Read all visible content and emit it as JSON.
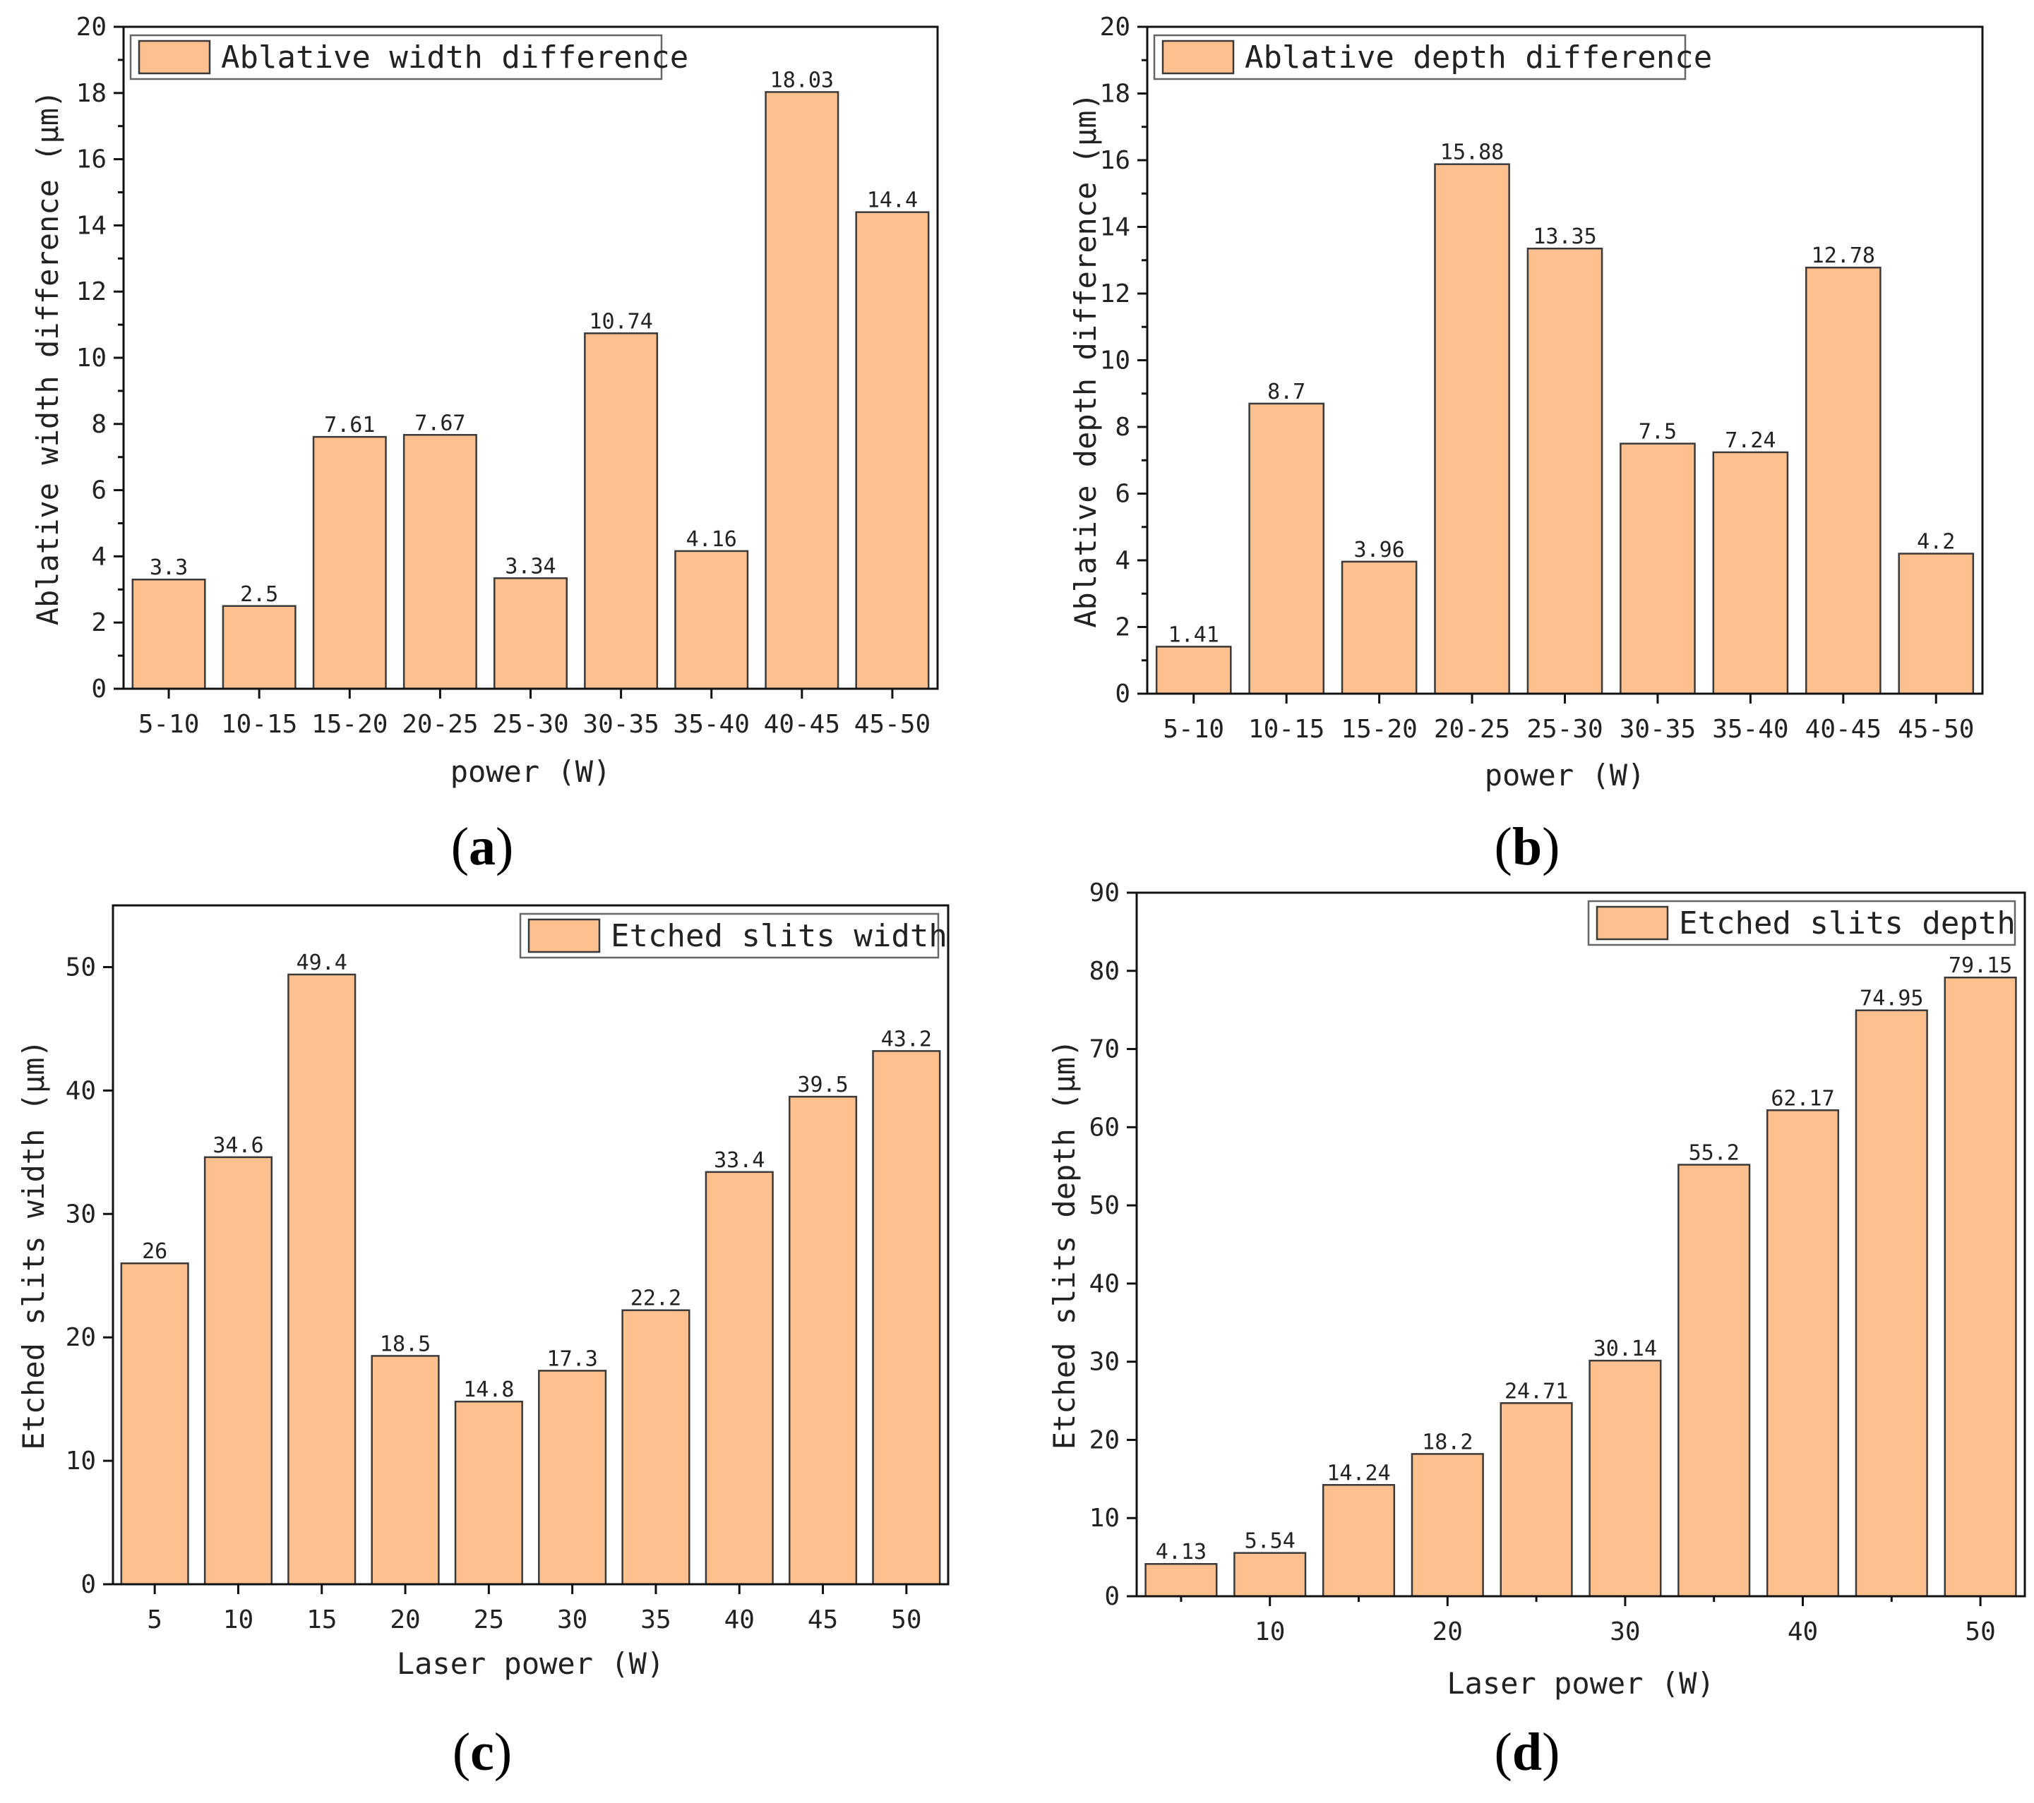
{
  "chart_data": [
    {
      "id": "a",
      "type": "bar",
      "panel_label": "a",
      "categories": [
        "5-10",
        "10-15",
        "15-20",
        "20-25",
        "25-30",
        "30-35",
        "35-40",
        "40-45",
        "45-50"
      ],
      "values": [
        3.3,
        2.5,
        7.61,
        7.67,
        3.34,
        10.74,
        4.16,
        18.03,
        14.4
      ],
      "value_labels": [
        "3.3",
        "2.5",
        "7.61",
        "7.67",
        "3.34",
        "10.74",
        "4.16",
        "18.03",
        "14.4"
      ],
      "series_name": "Ablative width difference",
      "xlabel": "power (W)",
      "ylabel": "Ablative width difference (μm)",
      "ylim": [
        0,
        20
      ],
      "yticks": [
        0,
        2,
        4,
        6,
        8,
        10,
        12,
        14,
        16,
        18,
        20
      ],
      "xaxis": "categorical",
      "legend_position": "top-left",
      "grid": false
    },
    {
      "id": "b",
      "type": "bar",
      "panel_label": "b",
      "categories": [
        "5-10",
        "10-15",
        "15-20",
        "20-25",
        "25-30",
        "30-35",
        "35-40",
        "40-45",
        "45-50"
      ],
      "values": [
        1.41,
        8.7,
        3.96,
        15.88,
        13.35,
        7.5,
        7.24,
        12.78,
        4.2
      ],
      "value_labels": [
        "1.41",
        "8.7",
        "3.96",
        "15.88",
        "13.35",
        "7.5",
        "7.24",
        "12.78",
        "4.2"
      ],
      "series_name": "Ablative depth difference",
      "xlabel": "power (W)",
      "ylabel": "Ablative depth difference (μm)",
      "ylim": [
        0,
        20
      ],
      "yticks": [
        0,
        2,
        4,
        6,
        8,
        10,
        12,
        14,
        16,
        18,
        20
      ],
      "xaxis": "categorical",
      "legend_position": "top-left",
      "grid": false
    },
    {
      "id": "c",
      "type": "bar",
      "panel_label": "c",
      "categories": [
        "5",
        "10",
        "15",
        "20",
        "25",
        "30",
        "35",
        "40",
        "45",
        "50"
      ],
      "values": [
        26,
        34.6,
        49.4,
        18.5,
        14.8,
        17.3,
        22.2,
        33.4,
        39.5,
        43.2
      ],
      "value_labels": [
        "26",
        "34.6",
        "49.4",
        "18.5",
        "14.8",
        "17.3",
        "22.2",
        "33.4",
        "39.5",
        "43.2"
      ],
      "series_name": "Etched slits width",
      "xlabel": "Laser power (W)",
      "ylabel": "Etched slits width (μm)",
      "ylim": [
        0,
        55
      ],
      "yticks": [
        0,
        10,
        20,
        30,
        40,
        50
      ],
      "xaxis": "categorical",
      "legend_position": "top-right",
      "grid": false
    },
    {
      "id": "d",
      "type": "bar",
      "panel_label": "d",
      "x": [
        5,
        10,
        15,
        20,
        25,
        30,
        35,
        40,
        45,
        50
      ],
      "values": [
        4.13,
        5.54,
        14.24,
        18.2,
        24.71,
        30.14,
        55.2,
        62.17,
        74.95,
        79.15
      ],
      "value_labels": [
        "4.13",
        "5.54",
        "14.24",
        "18.2",
        "24.71",
        "30.14",
        "55.2",
        "62.17",
        "74.95",
        "79.15"
      ],
      "series_name": "Etched slits depth",
      "xlabel": "Laser power (W)",
      "ylabel": "Etched slits depth (μm)",
      "ylim": [
        0,
        90
      ],
      "xlim": [
        2.5,
        52.5
      ],
      "yticks": [
        0,
        10,
        20,
        30,
        40,
        50,
        60,
        70,
        80,
        90
      ],
      "xticks": [
        10,
        20,
        30,
        40,
        50
      ],
      "xaxis": "numeric",
      "legend_position": "top-right",
      "grid": false
    }
  ],
  "colors": {
    "bar_fill": "#FDC08E",
    "bar_stroke": "#3a3a3a",
    "axis": "#111111",
    "text": "#222222"
  }
}
